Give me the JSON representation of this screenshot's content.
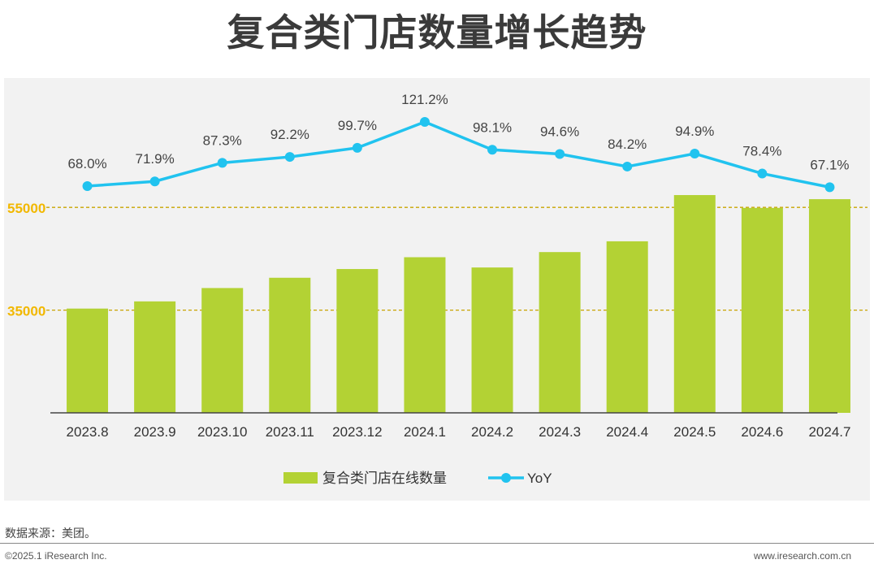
{
  "title": "复合类门店数量增长趋势",
  "source": "数据来源：美团。",
  "footer": {
    "copyright": "©2025.1 iResearch Inc.",
    "website": "www.iresearch.com.cn"
  },
  "colors": {
    "bar": "#b3d234",
    "line": "#21c3ef",
    "reference_line": "#c8a400",
    "axis_label_highlight": "#f2b800"
  },
  "chart_data": {
    "type": "bar",
    "categories": [
      "2023.8",
      "2023.9",
      "2023.10",
      "2023.11",
      "2023.12",
      "2024.1",
      "2024.2",
      "2024.3",
      "2024.4",
      "2024.5",
      "2024.6",
      "2024.7"
    ],
    "series": [
      {
        "name": "复合类门店在线数量",
        "type": "bar",
        "values": [
          35300,
          36700,
          39300,
          41300,
          43000,
          45300,
          43300,
          46300,
          48400,
          57400,
          54900,
          56600
        ]
      },
      {
        "name": "YoY",
        "type": "line",
        "values": [
          68.0,
          71.9,
          87.3,
          92.2,
          99.7,
          121.2,
          98.1,
          94.6,
          84.2,
          94.9,
          78.4,
          67.1
        ],
        "labels": [
          "68.0%",
          "71.9%",
          "87.3%",
          "92.2%",
          "99.7%",
          "121.2%",
          "98.1%",
          "94.6%",
          "84.2%",
          "94.9%",
          "78.4%",
          "67.1%"
        ]
      }
    ],
    "y_labels": [
      "55000",
      "35000"
    ],
    "y_reference_values": [
      55000,
      35000
    ],
    "ylim": [
      15000,
      60000
    ],
    "yoy_range": [
      0,
      160
    ],
    "legend_position": "bottom",
    "grid": false
  }
}
